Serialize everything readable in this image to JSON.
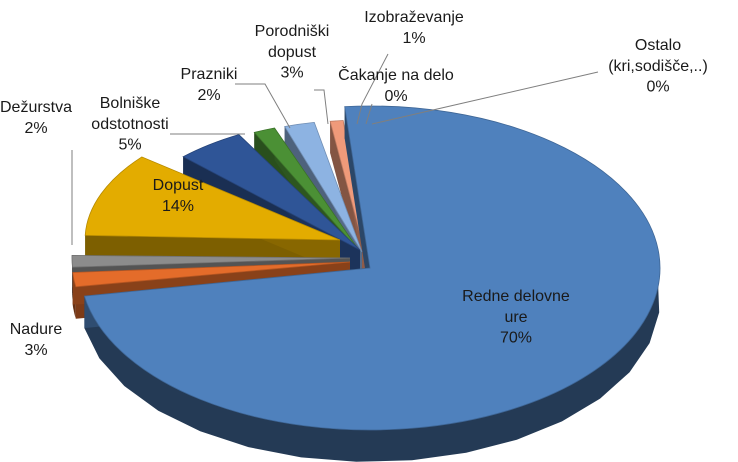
{
  "chart_data": {
    "type": "pie",
    "title": "",
    "legend": "none",
    "categories": [
      "Redne delovne ure",
      "Nadure",
      "Dežurstva",
      "Dopust",
      "Bolniške odstotnosti",
      "Prazniki",
      "Porodniški dopust",
      "Izobraževanje",
      "Čakanje na delo",
      "Ostalo (kri,sodišče,..)"
    ],
    "values": [
      70,
      3,
      2,
      14,
      5,
      2,
      3,
      1,
      0,
      0
    ],
    "label_lines": [
      [
        "Redne delovne",
        "ure",
        "70%"
      ],
      [
        "Nadure",
        "3%"
      ],
      [
        "Dežurstva",
        "2%"
      ],
      [
        "Dopust",
        "14%"
      ],
      [
        "Bolniške",
        "odstotnosti",
        "5%"
      ],
      [
        "Prazniki",
        "2%"
      ],
      [
        "Porodniški",
        "dopust",
        "3%"
      ],
      [
        "Izobraževanje",
        "1%"
      ],
      [
        "Čakanje na delo",
        "0%"
      ],
      [
        "Ostalo",
        "(kri,sodišče,..)",
        "0%"
      ]
    ],
    "colors": [
      "#4f81bd",
      "#e46c2a",
      "#8c8c8c",
      "#e3ac00",
      "#2f5597",
      "#4b9035",
      "#8db3e2",
      "#ef9a7a",
      "#c8bfa8",
      "#b3a37a"
    ]
  }
}
